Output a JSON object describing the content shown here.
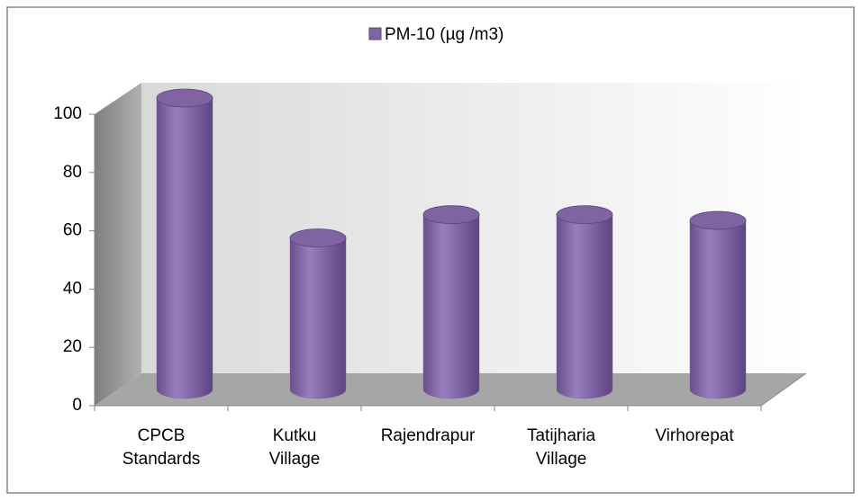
{
  "chart_data": {
    "type": "bar3d",
    "legend_label": "PM-10 (µg /m3)",
    "categories": [
      "CPCB Standards",
      "Kutku Village",
      "Rajendrapur",
      "Tatijharia Village",
      "Virhorepat"
    ],
    "values": [
      100,
      52,
      60,
      60,
      58
    ],
    "color": "#8064a2",
    "ylim": [
      0,
      100
    ],
    "yticks": [
      0,
      20,
      40,
      60,
      80,
      100
    ]
  }
}
